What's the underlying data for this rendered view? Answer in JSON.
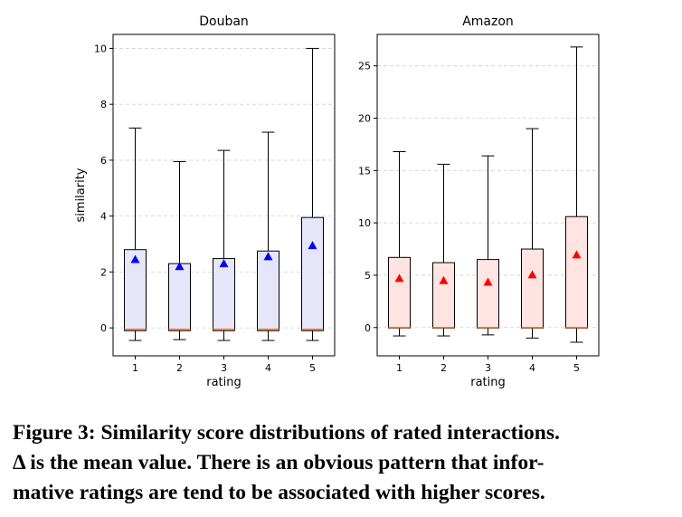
{
  "chart_data": [
    {
      "type": "box",
      "title": "Douban",
      "xlabel": "rating",
      "ylabel": "similarity",
      "categories": [
        "1",
        "2",
        "3",
        "4",
        "5"
      ],
      "ylim": [
        -1.0,
        10.5
      ],
      "yticks": [
        0,
        2,
        4,
        6,
        8,
        10
      ],
      "grid": "y-dashed",
      "box_color": "#e6e6fa",
      "mean_color": "#0000ff",
      "boxes": [
        {
          "whisker_low": -0.45,
          "q1": -0.1,
          "median": -0.05,
          "q3": 2.8,
          "whisker_high": 7.15,
          "mean": 2.45
        },
        {
          "whisker_low": -0.42,
          "q1": -0.1,
          "median": -0.05,
          "q3": 2.3,
          "whisker_high": 5.95,
          "mean": 2.2
        },
        {
          "whisker_low": -0.45,
          "q1": -0.1,
          "median": -0.05,
          "q3": 2.48,
          "whisker_high": 6.35,
          "mean": 2.3
        },
        {
          "whisker_low": -0.45,
          "q1": -0.1,
          "median": -0.05,
          "q3": 2.75,
          "whisker_high": 7.0,
          "mean": 2.55
        },
        {
          "whisker_low": -0.45,
          "q1": -0.1,
          "median": -0.05,
          "q3": 3.95,
          "whisker_high": 10.0,
          "mean": 2.95
        }
      ]
    },
    {
      "type": "box",
      "title": "Amazon",
      "xlabel": "rating",
      "ylabel": "",
      "categories": [
        "1",
        "2",
        "3",
        "4",
        "5"
      ],
      "ylim": [
        -2.7,
        28.0
      ],
      "yticks": [
        0,
        5,
        10,
        15,
        20,
        25
      ],
      "grid": "y-dashed",
      "box_color": "#ffe4e1",
      "mean_color": "#ff0000",
      "boxes": [
        {
          "whisker_low": -0.8,
          "q1": -0.05,
          "median": 0.0,
          "q3": 6.7,
          "whisker_high": 16.8,
          "mean": 4.7
        },
        {
          "whisker_low": -0.8,
          "q1": -0.05,
          "median": 0.0,
          "q3": 6.2,
          "whisker_high": 15.6,
          "mean": 4.5
        },
        {
          "whisker_low": -0.7,
          "q1": -0.05,
          "median": 0.0,
          "q3": 6.5,
          "whisker_high": 16.4,
          "mean": 4.35
        },
        {
          "whisker_low": -1.0,
          "q1": -0.05,
          "median": 0.0,
          "q3": 7.5,
          "whisker_high": 19.0,
          "mean": 5.05
        },
        {
          "whisker_low": -1.4,
          "q1": -0.05,
          "median": 0.0,
          "q3": 10.6,
          "whisker_high": 26.8,
          "mean": 6.95
        }
      ]
    }
  ],
  "caption": {
    "line1": "Figure 3: Similarity score distributions of rated interactions.",
    "line2": "Δ is the mean value. There is an obvious pattern that infor-",
    "line3": "mative ratings are tend to be associated with higher scores."
  }
}
